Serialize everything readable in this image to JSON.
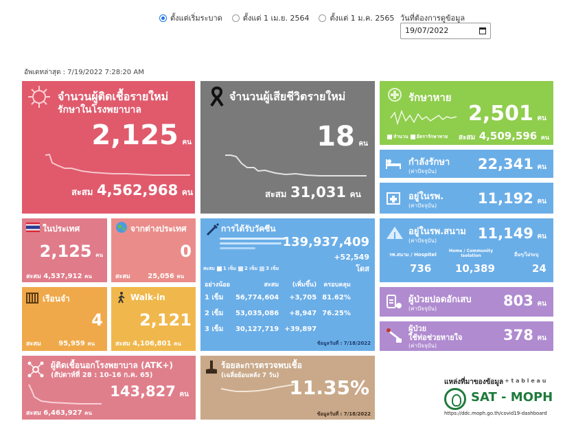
{
  "filters": {
    "options": [
      "ตั้งแต่เริ่มระบาด",
      "ตั้งแต่ 1 เม.ย. 2564",
      "ตั้งแต่ 1 ม.ค. 2565"
    ],
    "selected_index": 0,
    "date_label": "วันที่ต้องการดูข้อมูล",
    "date_value": "19/07/2022"
  },
  "updated": "อัพเดทล่าสุด : 7/19/2022 7:28:20 AM",
  "colors": {
    "new_cases": "#e05a6c",
    "deaths": "#7a7a7a",
    "recovered": "#8fcd4d",
    "blue": "#6aaee8",
    "domestic": "#e07b89",
    "abroad": "#ea8d8a",
    "prison": "#f0a94a",
    "walkin": "#f0b84c",
    "atk": "#e07f8c",
    "positivity": "#c9a98a",
    "purple": "#b08bd0"
  },
  "new_cases": {
    "title1": "จำนวนผู้ติดเชื้อรายใหม่",
    "title2": "รักษาในโรงพยาบาล",
    "value": "2,125",
    "unit": "คน",
    "cum_label": "สะสม",
    "cum_value": "4,562,968",
    "icon": "virus-icon"
  },
  "deaths": {
    "title": "จำนวนผู้เสียชีวิตรายใหม่",
    "value": "18",
    "unit": "คน",
    "cum_label": "สะสม",
    "cum_value": "31,031",
    "icon": "black-ribbon-icon"
  },
  "recovered": {
    "title": "รักษาหาย",
    "value": "2,501",
    "unit": "คน",
    "legend1": "จำนวน",
    "legend2": "อัตรารักษาหาย",
    "cum_label": "สะสม",
    "cum_value": "4,509,596",
    "icon": "medical-cross-icon"
  },
  "in_treatment": {
    "title": "กำลังรักษา",
    "sub": "(ค่าปัจจุบัน)",
    "value": "22,341",
    "unit": "คน",
    "icon": "hospital-bed-icon"
  },
  "in_hospital": {
    "title": "อยู่ในรพ.",
    "sub": "(ค่าปัจจุบัน)",
    "value": "11,192",
    "unit": "คน",
    "icon": "hospital-icon"
  },
  "field_hospital": {
    "title": "อยู่ในรพ.สนาม",
    "sub": "(ค่าปัจจุบัน)",
    "value": "11,149",
    "unit": "คน",
    "icon": "tent-icon",
    "cols": [
      {
        "label": "รพ.สนาม / Hospitel",
        "value": "736"
      },
      {
        "label": "Home / Community Isolation",
        "value": "10,389"
      },
      {
        "label": "อื่นๆ/ไม่ระบุ",
        "value": "24"
      }
    ]
  },
  "pneumonia": {
    "title": "ผู้ป่วยปอดอักเสบ",
    "sub": "(ค่าปัจจุบัน)",
    "value": "803",
    "unit": "คน",
    "icon": "lungs-icon"
  },
  "ventilator": {
    "title1": "ผู้ป่วย",
    "title2": "ใช้ท่อช่วยหายใจ",
    "sub": "(ค่าปัจจุบัน)",
    "value": "378",
    "unit": "คน",
    "icon": "ventilator-icon"
  },
  "domestic": {
    "title": "ในประเทศ",
    "value": "2,125",
    "unit": "คน",
    "cum_label": "สะสม",
    "cum_value": "4,537,912",
    "cum_unit": "คน",
    "icon": "thai-flag-icon"
  },
  "abroad": {
    "title": "จากต่างประเทศ",
    "value": "0",
    "unit": "คน",
    "cum_label": "สะสม",
    "cum_value": "25,056",
    "cum_unit": "คน",
    "icon": "globe-icon"
  },
  "prison": {
    "title": "เรือนจำ",
    "value": "4",
    "unit": "คน",
    "cum_label": "สะสม",
    "cum_value": "95,959",
    "cum_unit": "คน",
    "icon": "prison-bars-icon"
  },
  "walkin": {
    "title": "Walk-in",
    "value": "2,121",
    "unit": "คน",
    "cum_label": "สะสม",
    "cum_value": "4,106,801",
    "cum_unit": "คน",
    "icon": "walking-person-icon"
  },
  "vaccine": {
    "title": "การได้รับวัคซีน",
    "total": "139,937,409",
    "added": "+52,549",
    "unit": "โดส",
    "legend_prefix": "สะสม",
    "legend": [
      "1 เข็ม",
      "2 เข็ม",
      "3 เข็ม"
    ],
    "headers": [
      "อย่างน้อย",
      "สะสม",
      "(เพิ่มขึ้น)",
      "ครอบคลุม"
    ],
    "rows": [
      {
        "dose": "1 เข็ม",
        "cum": "56,774,604",
        "added": "+3,705",
        "coverage": "81.62%"
      },
      {
        "dose": "2 เข็ม",
        "cum": "53,035,086",
        "added": "+8,947",
        "coverage": "76.25%"
      },
      {
        "dose": "3 เข็ม",
        "cum": "30,127,719",
        "added": "+39,897",
        "coverage": ""
      }
    ],
    "as_of": "ข้อมูลวันที่ : 7/18/2022",
    "icon": "syringe-icon"
  },
  "atk": {
    "title": "ผู้ติดเชื้อนอกโรงพยาบาล (ATK+)",
    "week": "(สัปดาห์ที่  28  :  10-16 ก.ค. 65)",
    "value": "143,827",
    "unit": "คน",
    "cum_label": "สะสม",
    "cum_value": "6,463,927",
    "cum_unit": "คน",
    "icon": "network-people-icon"
  },
  "positivity": {
    "title": "ร้อยละการตรวจพบเชื้อ",
    "sub": "(เฉลี่ยย้อนหลัง 7 วัน)",
    "value": "11.35%",
    "as_of": "ข้อมูลวันที่ : 7/18/2022",
    "icon": "test-tube-hand-icon"
  },
  "source": {
    "label": "แหล่งที่มาของข้อมูล",
    "tableau": "+ t a b l e a u",
    "org": "SAT - MOPH",
    "url": "https://ddc.moph.go.th/covid19-dashboard"
  }
}
